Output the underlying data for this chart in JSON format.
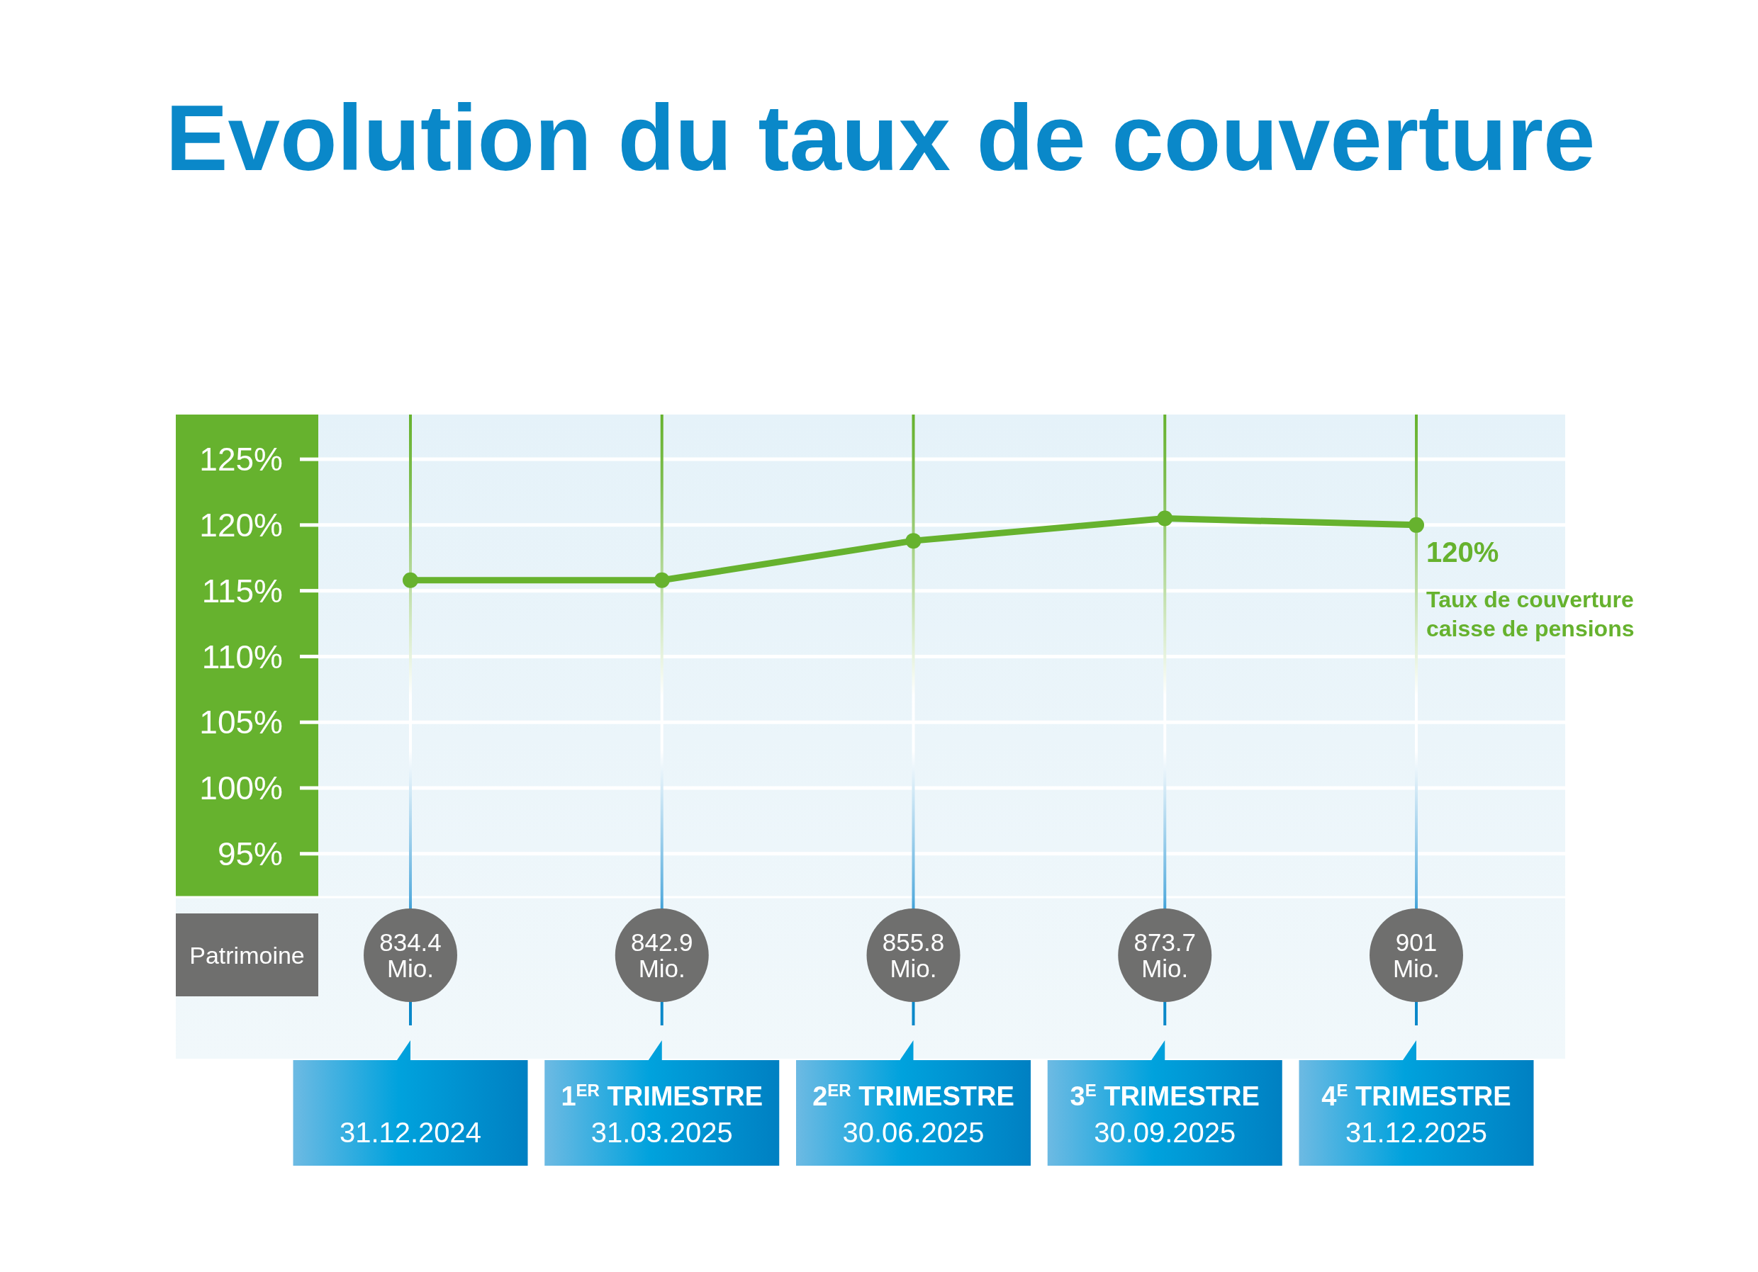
{
  "chart_data": {
    "type": "line",
    "title": "Evolution du taux de couverture",
    "categories": [
      "31.12.2024",
      "1$^{ER}$ TRIMESTRE\n31.03.2025",
      "2$^{ER}$ TRIMESTRE\n30.06.2025",
      "3$^{E}$ TRIMESTRE\n30.09.2025",
      "4$^{E}$ TRIMESTRE\n31.12.2025"
    ],
    "series": [
      {
        "name": "Taux de couverture caisse de pensions",
        "color": "#66b22e",
        "values": [
          115.8,
          115.8,
          118.8,
          120.5,
          120
        ],
        "value_labels": [
          null,
          null,
          null,
          null,
          "120%"
        ]
      }
    ],
    "ylim": [
      91.7,
      128.4
    ],
    "yticks": [
      {
        "value": 95,
        "label": "95%"
      },
      {
        "value": 100,
        "label": "100%"
      },
      {
        "value": 105,
        "label": "105%"
      },
      {
        "value": 110,
        "label": "110%"
      },
      {
        "value": 115,
        "label": "115%"
      },
      {
        "value": 120,
        "label": "120%"
      },
      {
        "value": 125,
        "label": "125%"
      }
    ],
    "grid": true,
    "marker": "circle",
    "line_style": "solid",
    "annotations": [
      "Patrimoine",
      "834.4 Mio.",
      "842.9 Mio.",
      "855.8 Mio.",
      "873.7 Mio.",
      "901 Mio."
    ]
  }
}
